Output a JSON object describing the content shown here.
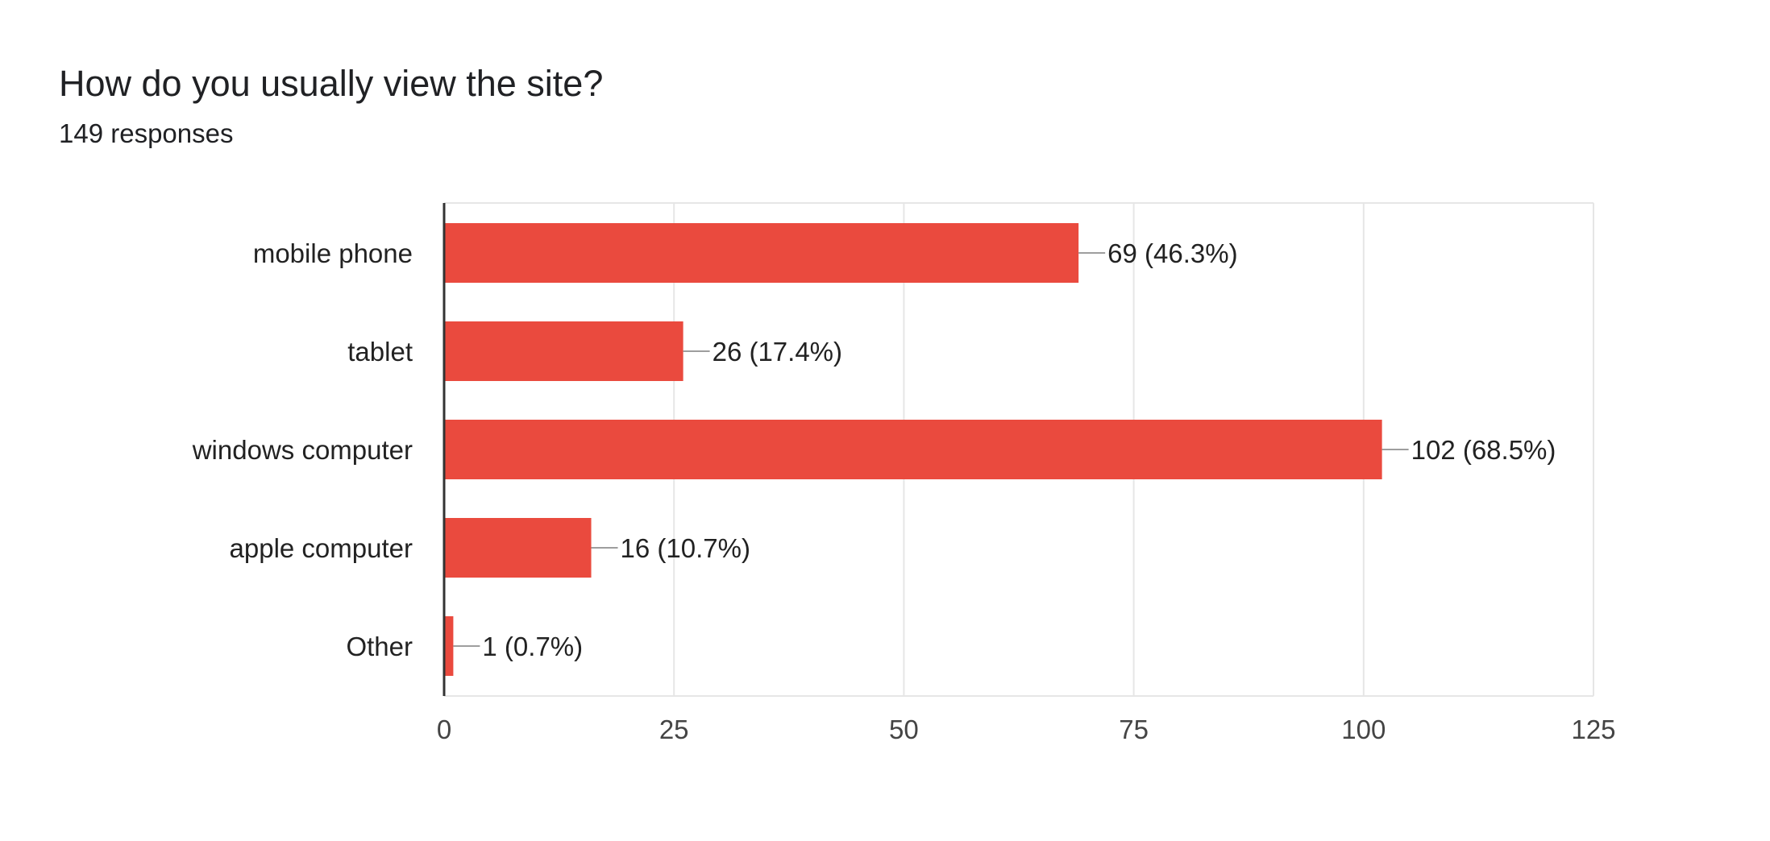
{
  "header": {
    "title": "How do you usually view the site?",
    "subtitle": "149 responses"
  },
  "colors": {
    "bar": "#ea4a3e",
    "grid": "#e6e6e6",
    "axis": "#333333",
    "leader": "#9e9e9e"
  },
  "chart_data": {
    "type": "bar",
    "orientation": "horizontal",
    "title": "How do you usually view the site?",
    "subtitle": "149 responses",
    "categories": [
      "mobile phone",
      "tablet",
      "windows computer",
      "apple computer",
      "Other"
    ],
    "values": [
      69,
      26,
      102,
      16,
      1
    ],
    "data_labels": [
      "69 (46.3%)",
      "26 (17.4%)",
      "102 (68.5%)",
      "16 (10.7%)",
      "1 (0.7%)"
    ],
    "xlim": [
      0,
      125
    ],
    "x_ticks": [
      0,
      25,
      50,
      75,
      100,
      125
    ],
    "grid": true,
    "legend": "none"
  }
}
